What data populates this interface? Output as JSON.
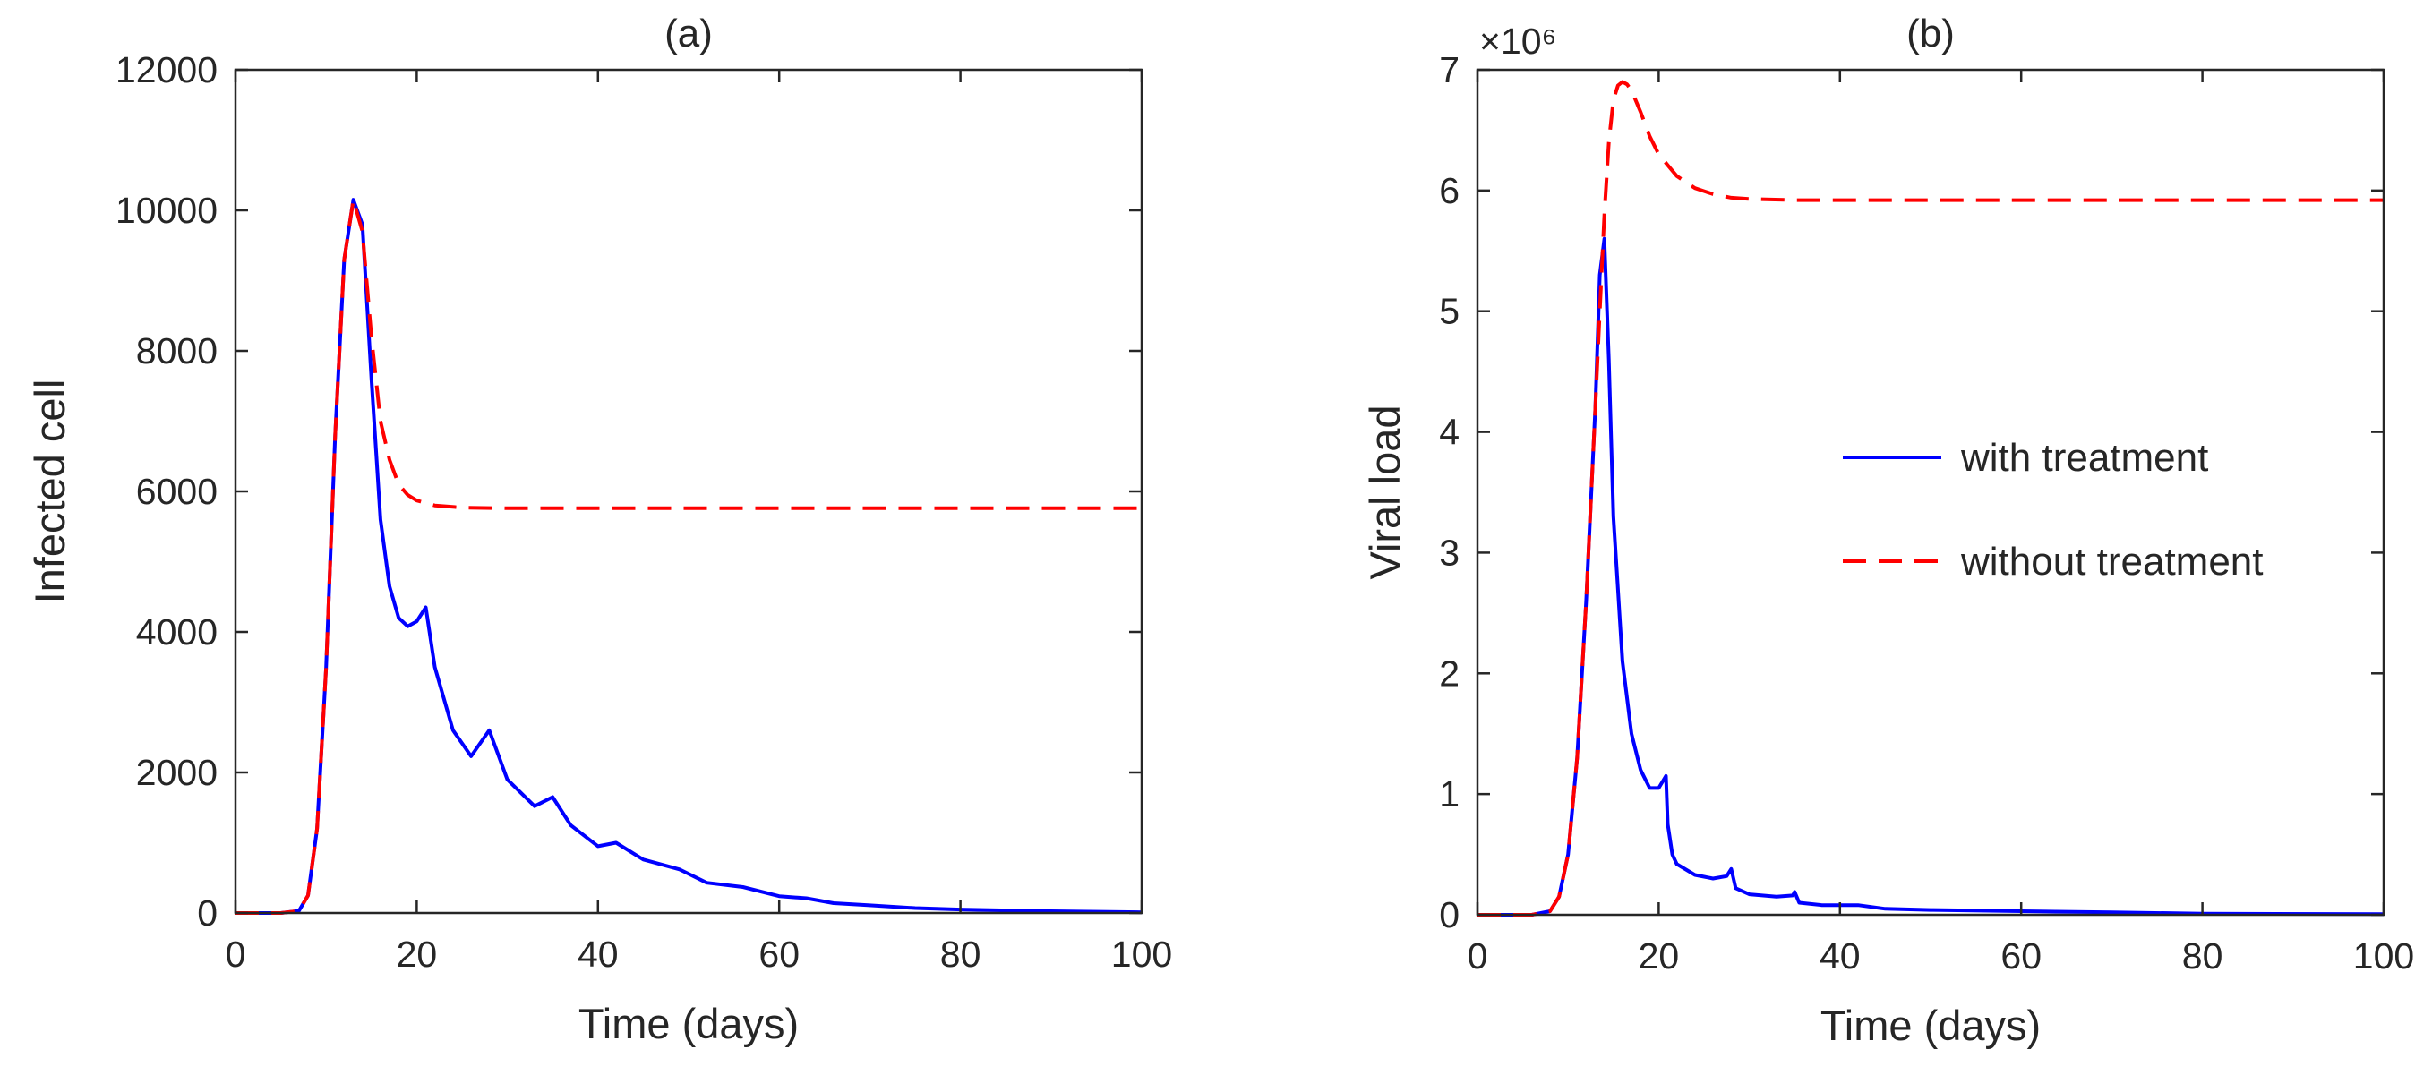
{
  "figure": {
    "colors": {
      "with": "#0000ff",
      "without": "#ff0000",
      "axis": "#262626"
    },
    "legend": {
      "with_label": "with treatment",
      "without_label": "without treatment",
      "placement": "right-middle"
    }
  },
  "chart_data": [
    {
      "type": "line",
      "title": "(a)",
      "xlabel": "Time (days)",
      "ylabel": "Infected cell",
      "xlim": [
        0,
        100
      ],
      "ylim": [
        0,
        12000
      ],
      "xticks": [
        0,
        20,
        40,
        60,
        80,
        100
      ],
      "yticks": [
        0,
        2000,
        4000,
        6000,
        8000,
        10000,
        12000
      ],
      "ytick_labels": [
        "0",
        "2000",
        "4000",
        "6000",
        "8000",
        "10000",
        "12000"
      ],
      "series": [
        {
          "name": "with treatment",
          "style": "solid",
          "x": [
            0,
            5,
            7,
            8,
            9,
            10,
            11,
            12,
            13,
            14,
            15,
            16,
            17,
            18,
            19,
            20,
            21,
            22,
            24,
            26,
            28,
            30,
            33,
            35,
            37,
            40,
            42,
            45,
            49,
            52,
            56,
            60,
            63,
            66,
            70,
            75,
            80,
            90,
            100
          ],
          "y": [
            0,
            0,
            30,
            250,
            1200,
            3500,
            6800,
            9300,
            10150,
            9800,
            7600,
            5600,
            4650,
            4200,
            4080,
            4150,
            4350,
            3500,
            2600,
            2230,
            2600,
            1900,
            1520,
            1650,
            1250,
            950,
            1000,
            760,
            620,
            430,
            370,
            240,
            210,
            140,
            110,
            70,
            50,
            25,
            10
          ]
        },
        {
          "name": "without treatment",
          "style": "dashed",
          "x": [
            0,
            5,
            7,
            8,
            9,
            10,
            11,
            12,
            13,
            14,
            15,
            16,
            17,
            18,
            19,
            20,
            22,
            25,
            30,
            40,
            60,
            80,
            100
          ],
          "y": [
            0,
            0,
            30,
            250,
            1200,
            3500,
            6800,
            9300,
            10150,
            9700,
            8200,
            7000,
            6450,
            6100,
            5950,
            5870,
            5800,
            5770,
            5760,
            5760,
            5760,
            5760,
            5760
          ]
        }
      ]
    },
    {
      "type": "line",
      "title": "(b)",
      "xlabel": "Time (days)",
      "ylabel": "Viral load",
      "y_multiplier": "×10⁶",
      "xlim": [
        0,
        100
      ],
      "ylim": [
        0,
        7
      ],
      "xticks": [
        0,
        20,
        40,
        60,
        80,
        100
      ],
      "yticks": [
        0,
        1,
        2,
        3,
        4,
        5,
        6,
        7
      ],
      "ytick_labels": [
        "0",
        "1",
        "2",
        "3",
        "4",
        "5",
        "6",
        "7"
      ],
      "series": [
        {
          "name": "with treatment",
          "style": "solid",
          "x": [
            0,
            6,
            8,
            9,
            10,
            11,
            12,
            13,
            13.5,
            14,
            14.5,
            15,
            16,
            17,
            18,
            19,
            20,
            20.8,
            21,
            21.5,
            22,
            24,
            26,
            27.5,
            28,
            28.5,
            30,
            33,
            34.8,
            35,
            35.5,
            38,
            42,
            45,
            50,
            60,
            70,
            80,
            100
          ],
          "y": [
            0,
            0,
            0.03,
            0.15,
            0.5,
            1.3,
            2.6,
            4.2,
            5.3,
            5.6,
            4.6,
            3.3,
            2.1,
            1.5,
            1.2,
            1.05,
            1.05,
            1.15,
            0.75,
            0.5,
            0.42,
            0.33,
            0.3,
            0.32,
            0.38,
            0.22,
            0.17,
            0.15,
            0.16,
            0.19,
            0.1,
            0.08,
            0.08,
            0.05,
            0.04,
            0.03,
            0.02,
            0.01,
            0.005
          ]
        },
        {
          "name": "without treatment",
          "style": "dashed",
          "x": [
            0,
            6,
            8,
            9,
            10,
            11,
            12,
            13,
            13.5,
            14,
            14.5,
            15,
            15.5,
            16,
            16.5,
            17,
            18,
            19,
            20,
            22,
            24,
            26,
            28,
            30,
            35,
            40,
            50,
            60,
            80,
            100
          ],
          "y": [
            0,
            0,
            0.03,
            0.15,
            0.5,
            1.3,
            2.6,
            4.2,
            5.0,
            5.8,
            6.4,
            6.75,
            6.87,
            6.9,
            6.88,
            6.83,
            6.65,
            6.45,
            6.3,
            6.12,
            6.02,
            5.97,
            5.94,
            5.93,
            5.92,
            5.92,
            5.92,
            5.92,
            5.92,
            5.92
          ]
        }
      ]
    }
  ]
}
